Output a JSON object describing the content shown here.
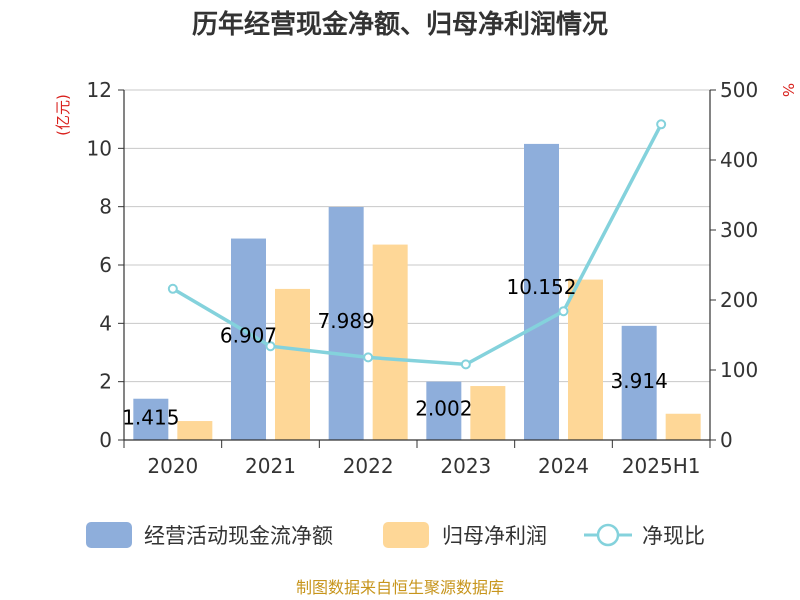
{
  "chart_data": {
    "type": "bar",
    "title": "历年经营现金净额、归母净利润情况",
    "y_left_unit": "(亿元)",
    "y_right_unit": "%",
    "categories": [
      "2020",
      "2021",
      "2022",
      "2023",
      "2024",
      "2025H1"
    ],
    "y_left_ticks": [
      "0",
      "2",
      "4",
      "6",
      "8",
      "10",
      "12"
    ],
    "y_right_ticks": [
      "0",
      "100",
      "200",
      "300",
      "400",
      "500"
    ],
    "ylim_left": [
      0,
      12
    ],
    "ylim_right": [
      0,
      500
    ],
    "grid": true,
    "legend_position": "bottom",
    "series": [
      {
        "name": "经营活动现金流净额",
        "kind": "bar",
        "axis": "left",
        "color": "#8eaedb",
        "values": [
          1.415,
          6.907,
          7.989,
          2.002,
          10.152,
          3.914
        ],
        "labels": [
          "1.415",
          "6.907",
          "7.989",
          "2.002",
          "10.152",
          "3.914"
        ]
      },
      {
        "name": "归母净利润",
        "kind": "bar",
        "axis": "left",
        "color": "#fed797",
        "values": [
          0.65,
          5.18,
          6.7,
          1.85,
          5.5,
          0.9
        ]
      },
      {
        "name": "净现比",
        "kind": "line",
        "axis": "right",
        "color": "#84d2dc",
        "values": [
          216,
          134,
          118,
          108,
          184,
          451
        ]
      }
    ],
    "footer": "制图数据来自恒生聚源数据库"
  }
}
